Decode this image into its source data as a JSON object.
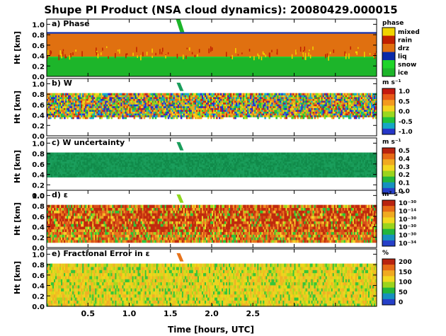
{
  "figure": {
    "title": "Shupe PI Product (NSA cloud dynamics): 20080429.000015",
    "xlabel": "Time [hours, UTC]",
    "x_ticks": [
      "0.5",
      "1.0",
      "1.5",
      "2.0",
      "2.5"
    ],
    "x_tick_values": [
      0.5,
      1.0,
      1.5,
      2.0,
      2.5
    ]
  },
  "chart_data": [
    {
      "type": "heatmap",
      "panel": "a",
      "title": "a) Phase",
      "ylabel": "Ht [km]",
      "xlim": [
        0.0,
        4.0
      ],
      "ylim": [
        0.0,
        1.1
      ],
      "y_ticks": [
        "0.0",
        "0.2",
        "0.4",
        "0.6",
        "0.8",
        "1.0"
      ],
      "colorbar": {
        "title": "phase",
        "type": "categorical",
        "labels": [
          "mixed",
          "rain",
          "drz",
          "liq",
          "snow",
          "ice"
        ],
        "colors": [
          "#f0d400",
          "#c02000",
          "#e07010",
          "#0a2aa8",
          "#1fd42a",
          "#1db52a"
        ]
      },
      "layers": [
        {
          "class": "ice",
          "base_km": 0.0,
          "top_km": 0.37
        },
        {
          "class": "snow",
          "base_km": 0.37,
          "top_km": 0.38
        },
        {
          "class": "drz",
          "base_km": 0.38,
          "top_km": 0.82
        },
        {
          "class": "liq",
          "base_km": 0.82,
          "top_km": 0.85
        }
      ],
      "features": [
        {
          "class": "ice",
          "time_h": 1.6,
          "base_km": 0.85,
          "top_km": 1.1
        }
      ]
    },
    {
      "type": "heatmap",
      "panel": "b",
      "title": "b) W",
      "ylabel": "Ht [km]",
      "xlim": [
        0.0,
        4.0
      ],
      "ylim": [
        0.0,
        1.1
      ],
      "y_ticks": [
        "0.0",
        "0.2",
        "0.4",
        "0.6",
        "0.8",
        "1.0"
      ],
      "cloud_layer_km": [
        0.33,
        0.82
      ],
      "colorbar": {
        "unit": "m s⁻¹",
        "ticks": [
          "1.0",
          "0.5",
          "0.0",
          "-0.5",
          "-1.0"
        ],
        "range": [
          -1.0,
          1.0
        ]
      }
    },
    {
      "type": "heatmap",
      "panel": "c",
      "title": "c) W uncertainty",
      "ylabel": "Ht [km]",
      "xlim": [
        0.0,
        4.0
      ],
      "ylim": [
        0.0,
        1.1
      ],
      "y_ticks": [
        "0.0",
        "0.2",
        "0.4",
        "0.6",
        "0.8",
        "1.0"
      ],
      "cloud_layer_km": [
        0.35,
        0.82
      ],
      "colorbar": {
        "unit": "m s⁻¹",
        "ticks": [
          "0.5",
          "0.4",
          "0.3",
          "0.2",
          "0.1",
          "0.0"
        ],
        "range": [
          0.0,
          0.5
        ]
      }
    },
    {
      "type": "heatmap",
      "panel": "d",
      "title": "d) ε",
      "ylabel": "Ht [km]",
      "xlim": [
        0.0,
        4.0
      ],
      "ylim": [
        0.0,
        1.1
      ],
      "y_ticks": [
        "0.0",
        "0.2",
        "0.4",
        "0.6",
        "0.8",
        "1.0"
      ],
      "cloud_layer_km": [
        0.1,
        0.82
      ],
      "colorbar": {
        "unit": "m² s⁻³",
        "scale": "log",
        "ticks": [
          "10⁻³⁰",
          "10⁻¹⁴",
          "10⁻³⁰",
          "10⁻³⁰",
          "10⁻³⁰",
          "10⁻³⁴"
        ]
      }
    },
    {
      "type": "heatmap",
      "panel": "e",
      "title": "e) Fractional Error in ε",
      "ylabel": "Ht [km]",
      "xlim": [
        0.0,
        4.0
      ],
      "ylim": [
        0.0,
        1.1
      ],
      "y_ticks": [
        "0.0",
        "0.2",
        "0.4",
        "0.6",
        "0.8",
        "1.0"
      ],
      "cloud_layer_km": [
        0.0,
        0.82
      ],
      "colorbar": {
        "unit": "%",
        "ticks": [
          "200",
          "150",
          "100",
          "50",
          "0"
        ],
        "range": [
          0,
          200
        ]
      }
    }
  ]
}
